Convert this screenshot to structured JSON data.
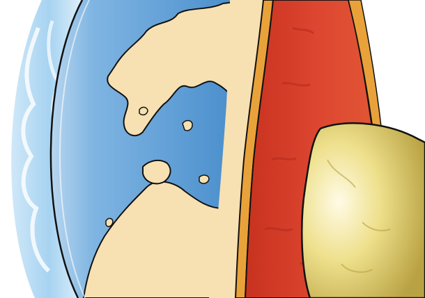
{
  "illustration": {
    "subject": "earth-layers-cutaway",
    "layers": [
      "atmosphere",
      "crust",
      "upper-mantle",
      "mantle",
      "core"
    ],
    "colors": {
      "background": "#ffffff",
      "atmosphere": "#9ecff0",
      "atmosphere_light": "#e6f4fc",
      "ocean": "#3f86c8",
      "ocean_light": "#7fb5e2",
      "land": "#f7e0b2",
      "outline": "#111111",
      "crust_rim": "#e9a23a",
      "mantle": "#d9412e",
      "mantle_dark": "#b42c1f",
      "core": "#e9d777",
      "core_highlight": "#fffbe6",
      "core_shadow": "#b9a243"
    }
  }
}
